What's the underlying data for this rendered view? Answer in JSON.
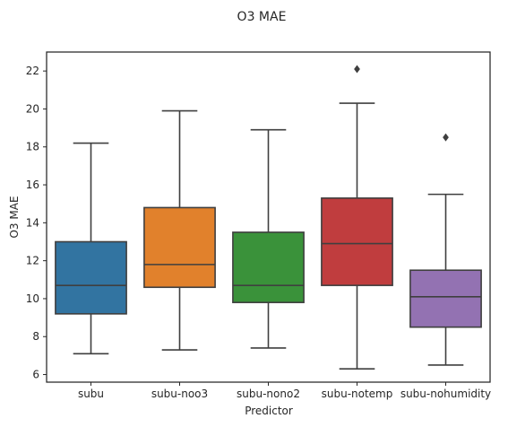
{
  "chart_data": {
    "type": "box",
    "title": "O3 MAE",
    "xlabel": "Predictor",
    "ylabel": "O3 MAE",
    "ylim": [
      5.6,
      23.0
    ],
    "yticks": [
      6,
      8,
      10,
      12,
      14,
      16,
      18,
      20,
      22
    ],
    "grid": false,
    "categories": [
      "subu",
      "subu-noo3",
      "subu-nono2",
      "subu-notemp",
      "subu-nohumidity"
    ],
    "boxes": [
      {
        "category": "subu",
        "color": "#3274a1",
        "whisker_low": 7.1,
        "q1": 9.2,
        "median": 10.7,
        "q3": 13.0,
        "whisker_high": 18.2,
        "outliers": []
      },
      {
        "category": "subu-noo3",
        "color": "#e1812c",
        "whisker_low": 7.3,
        "q1": 10.6,
        "median": 11.8,
        "q3": 14.8,
        "whisker_high": 19.9,
        "outliers": []
      },
      {
        "category": "subu-nono2",
        "color": "#3a923a",
        "whisker_low": 7.4,
        "q1": 9.8,
        "median": 10.7,
        "q3": 13.5,
        "whisker_high": 18.9,
        "outliers": []
      },
      {
        "category": "subu-notemp",
        "color": "#c03d3e",
        "whisker_low": 6.3,
        "q1": 10.7,
        "median": 12.9,
        "q3": 15.3,
        "whisker_high": 20.3,
        "outliers": [
          22.1
        ]
      },
      {
        "category": "subu-nohumidity",
        "color": "#9372b2",
        "whisker_low": 6.5,
        "q1": 8.5,
        "median": 10.1,
        "q3": 11.5,
        "whisker_high": 15.5,
        "outliers": [
          18.5
        ]
      }
    ]
  }
}
